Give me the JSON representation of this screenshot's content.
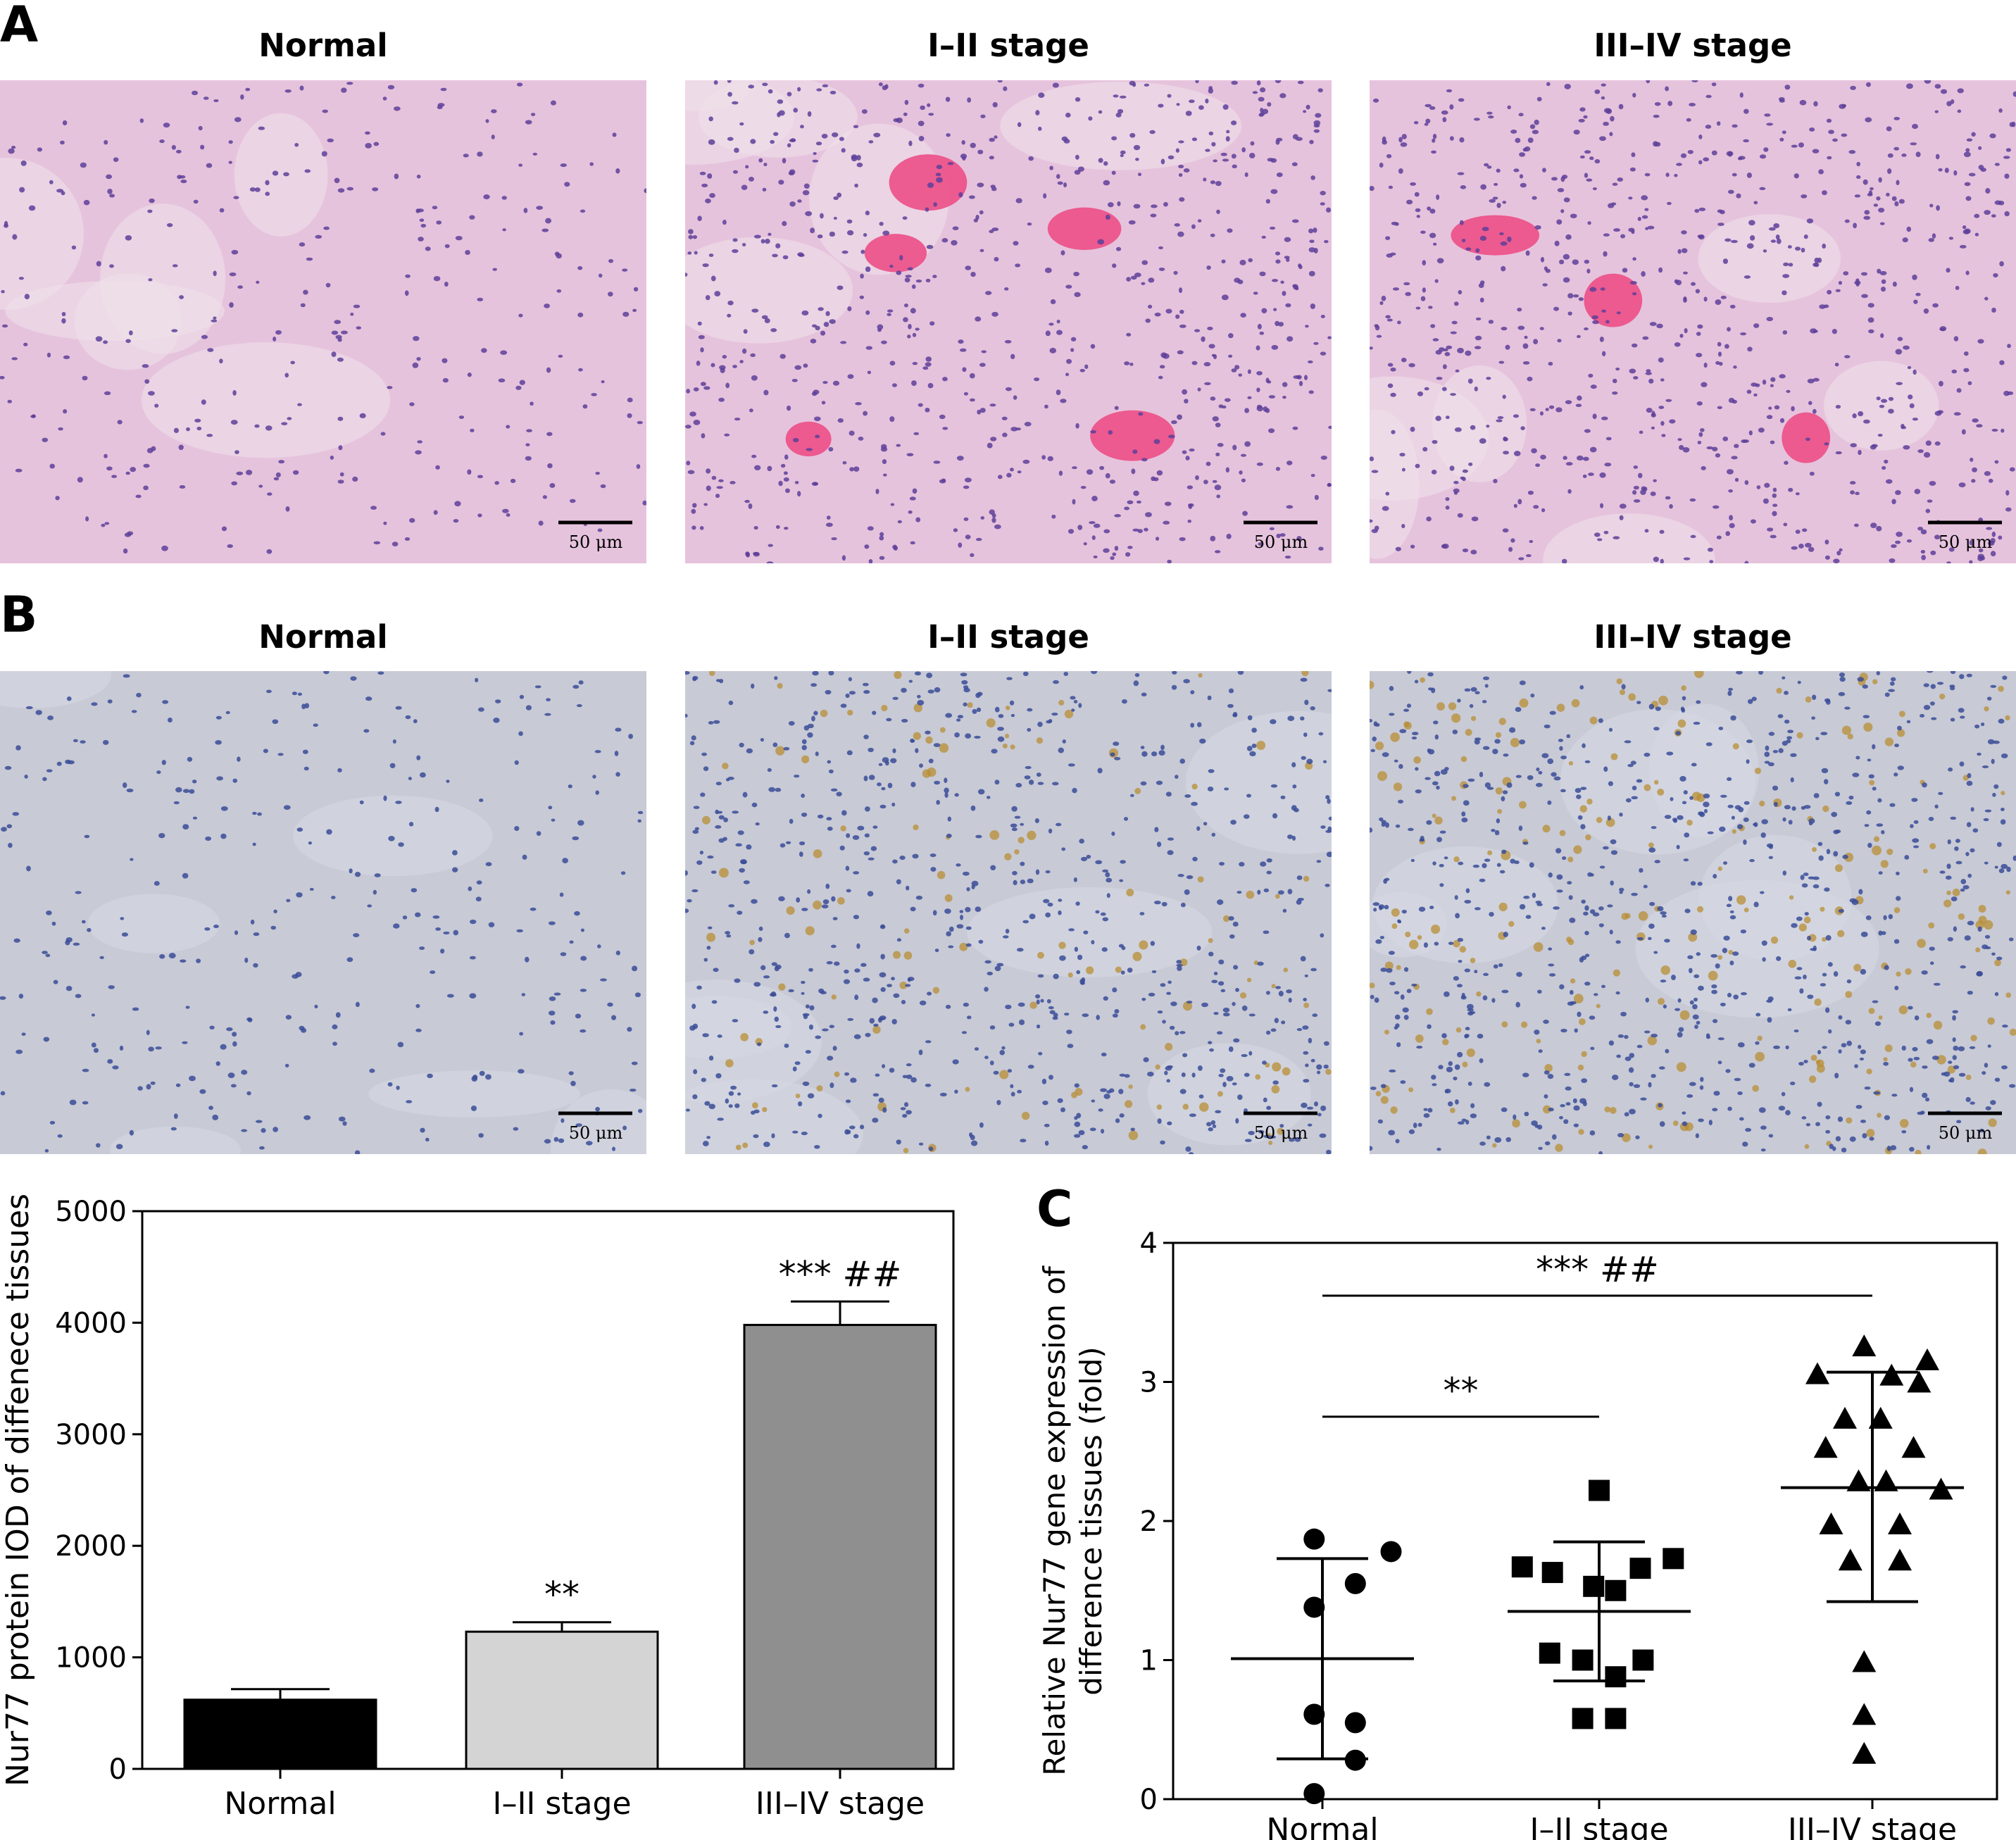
{
  "panels": {
    "A": {
      "label": "A",
      "titles": [
        "Normal",
        "I–II stage",
        "III–IV stage"
      ],
      "scale_bar": "50 μm",
      "colors": {
        "background": "#e6c3dc",
        "nuclei": "#5d3f9a",
        "vessel": "#ec4f86"
      }
    },
    "B": {
      "label": "B",
      "titles": [
        "Normal",
        "I–II stage",
        "III–IV stage"
      ],
      "scale_bar": "50 μm",
      "colors": {
        "background": "#c8cad6",
        "nuclei": "#3a4c98",
        "stain": "#b88e33"
      }
    },
    "C": {
      "label": "C"
    }
  },
  "chart_data": [
    {
      "type": "bar",
      "categories": [
        "Normal",
        "I–II stage",
        "III–IV stage"
      ],
      "values": [
        620,
        1230,
        3980
      ],
      "errors": [
        95,
        85,
        210
      ],
      "colors": [
        "#000000",
        "#d4d4d4",
        "#8f8f8f"
      ],
      "annotations": [
        "",
        "**",
        "***   ##"
      ],
      "ylabel": "Nur77 protein IOD of diffenece tissues",
      "ylim": [
        0,
        5000
      ],
      "yticks": [
        0,
        1000,
        2000,
        3000,
        4000,
        5000
      ],
      "grid": false
    },
    {
      "type": "scatter",
      "categories": [
        "Normal",
        "I–II stage",
        "III–IV stage"
      ],
      "ylabel": "Relative Nur77 gene expression of difference tissues (fold)",
      "ylim": [
        0,
        4
      ],
      "yticks": [
        0,
        1,
        2,
        3,
        4
      ],
      "grid": false,
      "series": [
        {
          "marker": "circle",
          "mean": 1.01,
          "sd_low": 0.29,
          "sd_high": 1.73,
          "points": [
            [
              -0.03,
              1.87
            ],
            [
              0.25,
              1.78
            ],
            [
              0.12,
              1.55
            ],
            [
              -0.03,
              1.38
            ],
            [
              -0.03,
              0.61
            ],
            [
              0.12,
              0.55
            ],
            [
              0.12,
              0.28
            ],
            [
              -0.03,
              0.04
            ]
          ]
        },
        {
          "marker": "square",
          "mean": 1.35,
          "sd_low": 0.85,
          "sd_high": 1.85,
          "points": [
            [
              0.0,
              2.22
            ],
            [
              -0.28,
              1.67
            ],
            [
              -0.17,
              1.63
            ],
            [
              0.27,
              1.73
            ],
            [
              0.15,
              1.66
            ],
            [
              -0.02,
              1.53
            ],
            [
              0.06,
              1.5
            ],
            [
              -0.18,
              1.05
            ],
            [
              -0.06,
              1.0
            ],
            [
              0.16,
              1.0
            ],
            [
              0.06,
              0.88
            ],
            [
              -0.06,
              0.58
            ],
            [
              0.06,
              0.58
            ]
          ]
        },
        {
          "marker": "triangle",
          "mean": 2.24,
          "sd_low": 1.42,
          "sd_high": 3.07,
          "points": [
            [
              -0.03,
              3.25
            ],
            [
              0.2,
              3.15
            ],
            [
              -0.2,
              3.05
            ],
            [
              0.07,
              3.04
            ],
            [
              0.17,
              2.99
            ],
            [
              -0.1,
              2.73
            ],
            [
              0.03,
              2.73
            ],
            [
              -0.17,
              2.52
            ],
            [
              0.15,
              2.52
            ],
            [
              -0.05,
              2.28
            ],
            [
              0.05,
              2.28
            ],
            [
              0.25,
              2.22
            ],
            [
              -0.15,
              1.97
            ],
            [
              0.1,
              1.97
            ],
            [
              -0.08,
              1.71
            ],
            [
              0.1,
              1.71
            ],
            [
              -0.03,
              0.98
            ],
            [
              -0.03,
              0.6
            ],
            [
              -0.03,
              0.32
            ]
          ]
        }
      ],
      "brackets": [
        {
          "from": "Normal",
          "to": "III–IV stage",
          "y": 3.62,
          "label": "***   ##"
        },
        {
          "from": "Normal",
          "to": "I–II stage",
          "y": 2.75,
          "label": "**"
        }
      ]
    }
  ]
}
